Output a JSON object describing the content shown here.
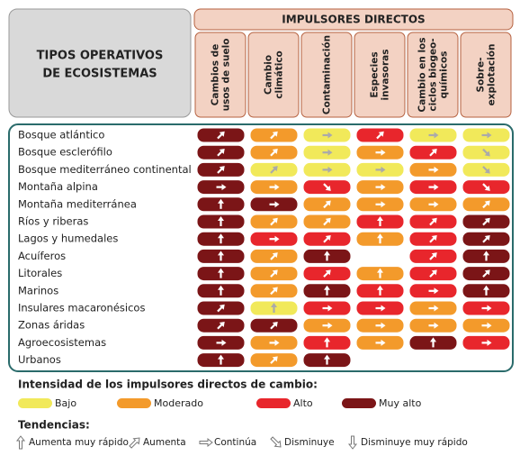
{
  "header": {
    "row_title": [
      "TIPOS OPERATIVOS",
      "DE ECOSISTEMAS"
    ],
    "group_title": "IMPULSORES DIRECTOS",
    "columns": [
      [
        "Cambios de",
        "usos de suelo"
      ],
      [
        "Cambio",
        "climático"
      ],
      [
        "Contaminación"
      ],
      [
        "Especies",
        "invasoras"
      ],
      [
        "Cambio en los",
        "ciclos biogeo-",
        "químicos"
      ],
      [
        "Sobre-",
        "explotación"
      ]
    ]
  },
  "rows": [
    {
      "label": "Bosque atlántico",
      "cells": [
        [
          "Muy alto",
          "Aumenta"
        ],
        [
          "Moderado",
          "Aumenta"
        ],
        [
          "Bajo",
          "Continúa"
        ],
        [
          "Alto",
          "Aumenta"
        ],
        [
          "Bajo",
          "Continúa"
        ],
        [
          "Bajo",
          "Continúa"
        ]
      ]
    },
    {
      "label": "Bosque esclerófilo",
      "cells": [
        [
          "Muy alto",
          "Aumenta"
        ],
        [
          "Moderado",
          "Aumenta"
        ],
        [
          "Bajo",
          "Continúa"
        ],
        [
          "Moderado",
          "Continúa"
        ],
        [
          "Alto",
          "Aumenta"
        ],
        [
          "Bajo",
          "Disminuye"
        ]
      ]
    },
    {
      "label": "Bosque mediterráneo continental",
      "cells": [
        [
          "Muy alto",
          "Aumenta"
        ],
        [
          "Bajo",
          "Aumenta"
        ],
        [
          "Bajo",
          "Continúa"
        ],
        [
          "Bajo",
          "Continúa"
        ],
        [
          "Moderado",
          "Continúa"
        ],
        [
          "Bajo",
          "Disminuye"
        ]
      ]
    },
    {
      "label": "Montaña alpina",
      "cells": [
        [
          "Muy alto",
          "Continúa"
        ],
        [
          "Moderado",
          "Continúa"
        ],
        [
          "Alto",
          "Disminuye"
        ],
        [
          "Moderado",
          "Continúa"
        ],
        [
          "Alto",
          "Continúa"
        ],
        [
          "Alto",
          "Disminuye"
        ]
      ]
    },
    {
      "label": "Montaña mediterránea",
      "cells": [
        [
          "Muy alto",
          "Aumenta muy rápido"
        ],
        [
          "Muy alto",
          "Continúa"
        ],
        [
          "Moderado",
          "Aumenta"
        ],
        [
          "Moderado",
          "Continúa"
        ],
        [
          "Moderado",
          "Continúa"
        ],
        [
          "Moderado",
          "Aumenta"
        ]
      ]
    },
    {
      "label": "Ríos y riberas",
      "cells": [
        [
          "Muy alto",
          "Aumenta muy rápido"
        ],
        [
          "Moderado",
          "Aumenta"
        ],
        [
          "Moderado",
          "Aumenta"
        ],
        [
          "Alto",
          "Aumenta muy rápido"
        ],
        [
          "Alto",
          "Aumenta"
        ],
        [
          "Muy alto",
          "Aumenta"
        ]
      ]
    },
    {
      "label": "Lagos y humedales",
      "cells": [
        [
          "Muy alto",
          "Aumenta muy rápido"
        ],
        [
          "Alto",
          "Continúa"
        ],
        [
          "Alto",
          "Aumenta"
        ],
        [
          "Moderado",
          "Aumenta muy rápido"
        ],
        [
          "Alto",
          "Aumenta"
        ],
        [
          "Muy alto",
          "Aumenta"
        ]
      ]
    },
    {
      "label": "Acuíferos",
      "cells": [
        [
          "Muy alto",
          "Aumenta muy rápido"
        ],
        [
          "Moderado",
          "Aumenta"
        ],
        [
          "Muy alto",
          "Aumenta muy rápido"
        ],
        null,
        [
          "Alto",
          "Aumenta"
        ],
        [
          "Muy alto",
          "Aumenta muy rápido"
        ]
      ]
    },
    {
      "label": "Litorales",
      "cells": [
        [
          "Muy alto",
          "Aumenta muy rápido"
        ],
        [
          "Moderado",
          "Aumenta"
        ],
        [
          "Alto",
          "Aumenta"
        ],
        [
          "Moderado",
          "Aumenta muy rápido"
        ],
        [
          "Alto",
          "Aumenta"
        ],
        [
          "Muy alto",
          "Aumenta"
        ]
      ]
    },
    {
      "label": "Marinos",
      "cells": [
        [
          "Muy alto",
          "Aumenta muy rápido"
        ],
        [
          "Moderado",
          "Aumenta"
        ],
        [
          "Muy alto",
          "Aumenta muy rápido"
        ],
        [
          "Alto",
          "Aumenta muy rápido"
        ],
        [
          "Alto",
          "Continúa"
        ],
        [
          "Muy alto",
          "Aumenta muy rápido"
        ]
      ]
    },
    {
      "label": "Insulares macaronésicos",
      "cells": [
        [
          "Muy alto",
          "Aumenta"
        ],
        [
          "Bajo",
          "Aumenta muy rápido"
        ],
        [
          "Alto",
          "Continúa"
        ],
        [
          "Alto",
          "Continúa"
        ],
        [
          "Moderado",
          "Continúa"
        ],
        [
          "Alto",
          "Continúa"
        ]
      ]
    },
    {
      "label": "Zonas áridas",
      "cells": [
        [
          "Muy alto",
          "Aumenta"
        ],
        [
          "Muy alto",
          "Aumenta"
        ],
        [
          "Moderado",
          "Continúa"
        ],
        [
          "Moderado",
          "Continúa"
        ],
        [
          "Moderado",
          "Continúa"
        ],
        [
          "Moderado",
          "Continúa"
        ]
      ]
    },
    {
      "label": "Agroecosistemas",
      "cells": [
        [
          "Muy alto",
          "Continúa"
        ],
        [
          "Moderado",
          "Continúa"
        ],
        [
          "Alto",
          "Aumenta muy rápido"
        ],
        [
          "Moderado",
          "Continúa"
        ],
        [
          "Muy alto",
          "Aumenta muy rápido"
        ],
        [
          "Alto",
          "Continúa"
        ]
      ]
    },
    {
      "label": "Urbanos",
      "cells": [
        [
          "Muy alto",
          "Aumenta muy rápido"
        ],
        [
          "Moderado",
          "Aumenta"
        ],
        [
          "Muy alto",
          "Aumenta muy rápido"
        ],
        null,
        null,
        null
      ]
    }
  ],
  "legend": {
    "intensity_title": "Intensidad de los impulsores directos de cambio:",
    "intensity": [
      {
        "label": "Bajo",
        "color": "#f1e95a"
      },
      {
        "label": "Moderado",
        "color": "#f39a2b"
      },
      {
        "label": "Alto",
        "color": "#e8262c"
      },
      {
        "label": "Muy alto",
        "color": "#7b1517"
      }
    ],
    "trend_title": "Tendencias:",
    "trends": [
      "Aumenta muy rápido",
      "Aumenta",
      "Continúa",
      "Disminuye",
      "Disminuye muy rápido"
    ]
  }
}
